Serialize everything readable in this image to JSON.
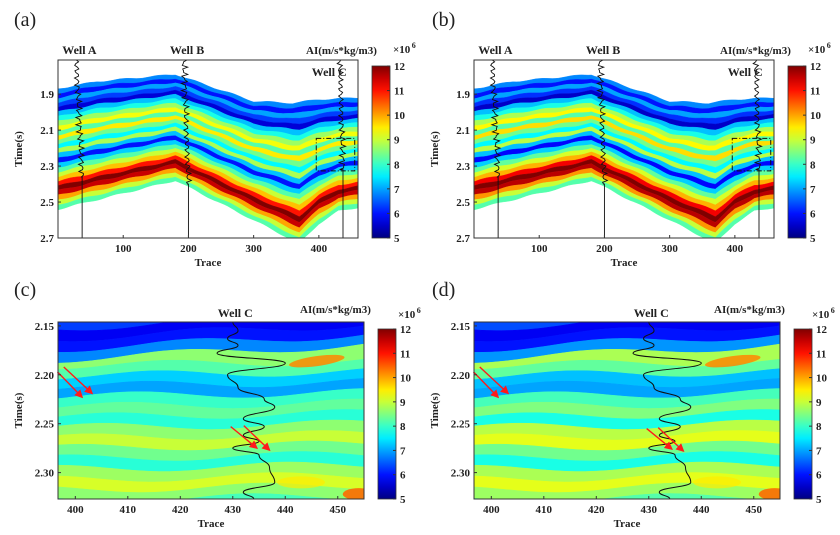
{
  "chart_data": [
    {
      "panel_label": "(a)",
      "type": "heatmap",
      "xlabel": "Trace",
      "ylabel": "Time(s)",
      "xlim": [
        0,
        460
      ],
      "ylim": [
        2.7,
        1.71
      ],
      "xticks": [
        "100",
        "200",
        "300",
        "400"
      ],
      "xtick_values": [
        100,
        200,
        300,
        400
      ],
      "yticks": [
        "1.9",
        "2.1",
        "2.3",
        "2.5",
        "2.7"
      ],
      "ytick_values": [
        1.9,
        2.1,
        2.3,
        2.5,
        2.7
      ],
      "colorbar": {
        "label": "AI(m/s*kg/m3)",
        "multiplier": "×10",
        "exponent": "6",
        "range": [
          5,
          12
        ],
        "ticks": [
          "5",
          "6",
          "7",
          "8",
          "9",
          "10",
          "11",
          "12"
        ],
        "tick_values": [
          5,
          6,
          7,
          8,
          9,
          10,
          11,
          12
        ],
        "colormap": "jet"
      },
      "wells": [
        {
          "name": "Well A",
          "trace": 28,
          "label_pos": "top"
        },
        {
          "name": "Well B",
          "trace": 193,
          "label_pos": "top"
        },
        {
          "name": "Well C",
          "trace": 432,
          "label_pos": "inside"
        }
      ],
      "zoom_box": {
        "trace": [
          396,
          455
        ],
        "time": [
          2.146,
          2.327
        ],
        "style": "dash-dot"
      },
      "ai_layers": [
        6.8,
        6.0,
        7.0,
        6.3,
        5.6,
        7.2,
        7.8,
        8.7,
        9.3,
        8.2,
        9.5,
        8.4,
        7.6,
        8.8,
        7.2,
        6.0,
        7.3,
        8.2,
        9.0,
        9.8,
        11.0,
        12.0,
        11.5,
        10.0,
        9.0,
        8.2
      ]
    },
    {
      "panel_label": "(b)",
      "type": "heatmap",
      "xlabel": "Trace",
      "ylabel": "Time(s)",
      "xlim": [
        0,
        460
      ],
      "ylim": [
        2.7,
        1.71
      ],
      "xticks": [
        "100",
        "200",
        "300",
        "400"
      ],
      "xtick_values": [
        100,
        200,
        300,
        400
      ],
      "yticks": [
        "1.9",
        "2.1",
        "2.3",
        "2.5",
        "2.7"
      ],
      "ytick_values": [
        1.9,
        2.1,
        2.3,
        2.5,
        2.7
      ],
      "colorbar": {
        "label": "AI(m/s*kg/m3)",
        "multiplier": "×10",
        "exponent": "6",
        "range": [
          5,
          12
        ],
        "ticks": [
          "5",
          "6",
          "7",
          "8",
          "9",
          "10",
          "11",
          "12"
        ],
        "tick_values": [
          5,
          6,
          7,
          8,
          9,
          10,
          11,
          12
        ],
        "colormap": "jet"
      },
      "wells": [
        {
          "name": "Well A",
          "trace": 28,
          "label_pos": "top"
        },
        {
          "name": "Well B",
          "trace": 193,
          "label_pos": "top"
        },
        {
          "name": "Well C",
          "trace": 432,
          "label_pos": "inside"
        }
      ],
      "zoom_box": {
        "trace": [
          396,
          455
        ],
        "time": [
          2.146,
          2.327
        ],
        "style": "dash-dot"
      },
      "ai_layers": [
        6.8,
        6.0,
        7.0,
        6.2,
        5.5,
        7.2,
        7.8,
        8.8,
        9.4,
        8.2,
        9.6,
        8.4,
        7.6,
        8.9,
        7.2,
        5.9,
        7.3,
        8.3,
        9.1,
        9.9,
        11.2,
        12.0,
        11.6,
        10.1,
        9.0,
        8.2
      ]
    },
    {
      "panel_label": "(c)",
      "type": "heatmap",
      "xlabel": "Trace",
      "ylabel": "Time(s)",
      "xlim": [
        396.7,
        455
      ],
      "ylim": [
        2.327,
        2.146
      ],
      "xticks": [
        "400",
        "410",
        "420",
        "430",
        "440",
        "450"
      ],
      "xtick_values": [
        400,
        410,
        420,
        430,
        440,
        450
      ],
      "yticks": [
        "2.15",
        "2.20",
        "2.25",
        "2.30"
      ],
      "ytick_values": [
        2.15,
        2.2,
        2.25,
        2.3
      ],
      "colorbar": {
        "label": "AI(m/s*kg/m3)",
        "multiplier": "×10",
        "exponent": "6",
        "range": [
          5,
          12
        ],
        "ticks": [
          "5",
          "6",
          "7",
          "8",
          "9",
          "10",
          "11",
          "12"
        ],
        "tick_values": [
          5,
          6,
          7,
          8,
          9,
          10,
          11,
          12
        ],
        "colormap": "jet"
      },
      "wells": [
        {
          "name": "Well C",
          "label_pos": "top"
        }
      ],
      "well_log": {
        "trace": [
          430,
          431,
          429,
          431,
          427,
          440,
          429,
          431,
          436,
          438,
          432,
          436,
          432,
          435,
          430,
          435,
          437,
          438,
          432,
          434
        ],
        "time": [
          2.146,
          2.155,
          2.163,
          2.17,
          2.178,
          2.188,
          2.2,
          2.213,
          2.225,
          2.233,
          2.245,
          2.253,
          2.262,
          2.268,
          2.275,
          2.282,
          2.295,
          2.31,
          2.32,
          2.327
        ]
      },
      "arrows": [
        {
          "from": [
            396.6,
            2.197
          ],
          "to": [
            401.3,
            2.223
          ]
        },
        {
          "from": [
            397.8,
            2.192
          ],
          "to": [
            403.2,
            2.219
          ]
        },
        {
          "from": [
            429.6,
            2.253
          ],
          "to": [
            434.6,
            2.275
          ]
        },
        {
          "from": [
            432.1,
            2.252
          ],
          "to": [
            437.0,
            2.277
          ]
        }
      ],
      "arrow_color": "#ff1a1a",
      "ai_layers": [
        6.3,
        5.8,
        6.0,
        6.8,
        8.6,
        8.2,
        7.3,
        7.0,
        8.0,
        8.3,
        7.9,
        8.6,
        9.0,
        8.4,
        7.9,
        8.7,
        9.1,
        8.6,
        8.1
      ]
    },
    {
      "panel_label": "(d)",
      "type": "heatmap",
      "xlabel": "Trace",
      "ylabel": "Time(s)",
      "xlim": [
        396.7,
        455
      ],
      "ylim": [
        2.327,
        2.146
      ],
      "xticks": [
        "400",
        "410",
        "420",
        "430",
        "440",
        "450"
      ],
      "xtick_values": [
        400,
        410,
        420,
        430,
        440,
        450
      ],
      "yticks": [
        "2.15",
        "2.20",
        "2.25",
        "2.30"
      ],
      "ytick_values": [
        2.15,
        2.2,
        2.25,
        2.3
      ],
      "colorbar": {
        "label": "AI(m/s*kg/m3)",
        "multiplier": "×10",
        "exponent": "6",
        "range": [
          5,
          12
        ],
        "ticks": [
          "5",
          "6",
          "7",
          "8",
          "9",
          "10",
          "11",
          "12"
        ],
        "tick_values": [
          5,
          6,
          7,
          8,
          9,
          10,
          11,
          12
        ],
        "colormap": "jet"
      },
      "wells": [
        {
          "name": "Well C",
          "label_pos": "top"
        }
      ],
      "well_log": {
        "trace": [
          430,
          431,
          429,
          431,
          427,
          440,
          429,
          431,
          436,
          438,
          432,
          436,
          432,
          435,
          430,
          435,
          437,
          438,
          432,
          434
        ],
        "time": [
          2.146,
          2.155,
          2.163,
          2.17,
          2.178,
          2.188,
          2.2,
          2.213,
          2.225,
          2.233,
          2.245,
          2.253,
          2.262,
          2.268,
          2.275,
          2.282,
          2.295,
          2.31,
          2.32,
          2.327
        ]
      },
      "arrows": [
        {
          "from": [
            396.6,
            2.197
          ],
          "to": [
            401.3,
            2.223
          ]
        },
        {
          "from": [
            397.8,
            2.192
          ],
          "to": [
            403.2,
            2.219
          ]
        },
        {
          "from": [
            429.6,
            2.255
          ],
          "to": [
            434.4,
            2.276
          ]
        },
        {
          "from": [
            431.8,
            2.254
          ],
          "to": [
            436.6,
            2.278
          ]
        }
      ],
      "arrow_color": "#ff1a1a",
      "ai_layers": [
        6.4,
        5.8,
        6.0,
        6.9,
        8.8,
        8.3,
        7.2,
        7.0,
        8.1,
        8.5,
        7.8,
        8.9,
        9.2,
        8.4,
        7.8,
        8.8,
        9.2,
        8.7,
        8.2
      ]
    }
  ]
}
